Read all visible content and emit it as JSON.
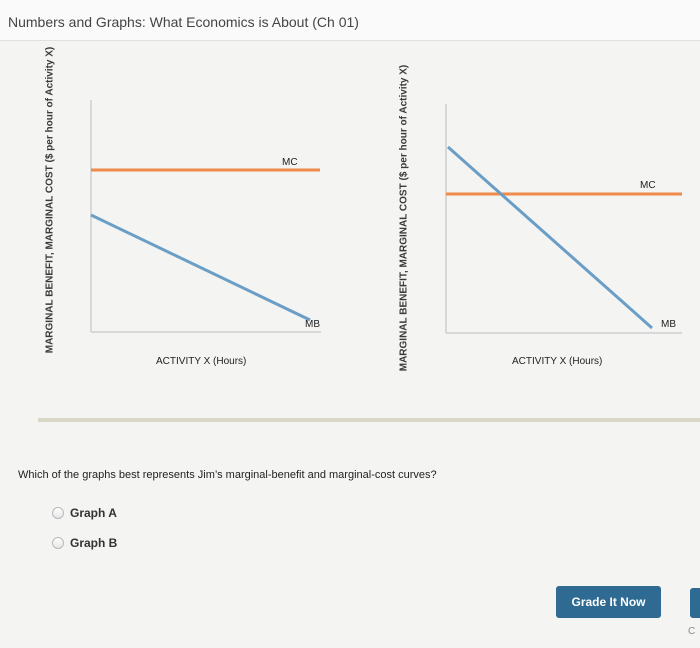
{
  "header": {
    "title": "Numbers and Graphs: What Economics is About (Ch 01)"
  },
  "graphs": [
    {
      "y_axis_label": "MARGINAL BENEFIT, MARGINAL COST ($ per hour of Activity X)",
      "x_axis_label": "ACTIVITY X (Hours)",
      "mc_label": "MC",
      "mb_label": "MB",
      "mc_color": "#f08a4b",
      "mb_color": "#6a9ec6"
    },
    {
      "y_axis_label": "MARGINAL BENEFIT, MARGINAL COST ($ per hour of Activity X)",
      "x_axis_label": "ACTIVITY X (Hours)",
      "mc_label": "MC",
      "mb_label": "MB",
      "mc_color": "#f08a4b",
      "mb_color": "#6a9ec6"
    }
  ],
  "question": {
    "text": "Which of the graphs best represents Jim’s marginal-benefit and marginal-cost curves?",
    "options": [
      {
        "label": "Graph A",
        "selected": false
      },
      {
        "label": "Graph B",
        "selected": false
      }
    ]
  },
  "actions": {
    "grade_label": "Grade It Now",
    "edge_text": "C"
  },
  "colors": {
    "button": "#2e6a92",
    "divider": "#d8d6c4"
  }
}
